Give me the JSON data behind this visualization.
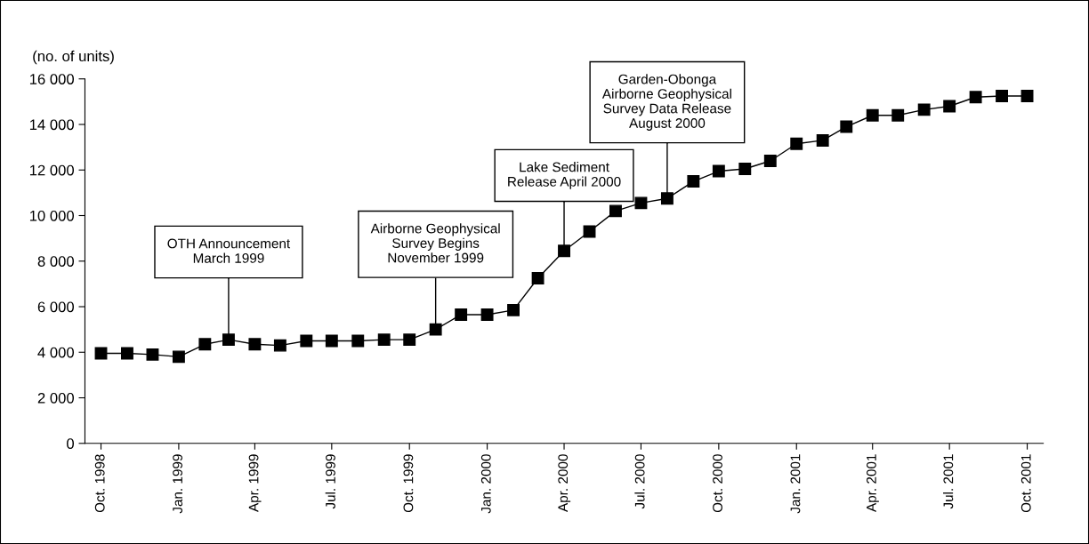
{
  "chart_data": {
    "type": "line",
    "ylabel": "(no. of units)",
    "x": [
      "1998-10",
      "1998-11",
      "1998-12",
      "1999-01",
      "1999-02",
      "1999-03",
      "1999-04",
      "1999-05",
      "1999-06",
      "1999-07",
      "1999-08",
      "1999-09",
      "1999-10",
      "1999-11",
      "1999-12",
      "2000-01",
      "2000-02",
      "2000-03",
      "2000-04",
      "2000-05",
      "2000-06",
      "2000-07",
      "2000-08",
      "2000-09",
      "2000-10",
      "2000-11",
      "2000-12",
      "2001-01",
      "2001-02",
      "2001-03",
      "2001-04",
      "2001-05",
      "2001-06",
      "2001-07",
      "2001-08",
      "2001-09",
      "2001-10"
    ],
    "series": [
      {
        "color": "#000000",
        "values": [
          3950,
          3950,
          3900,
          3800,
          4350,
          4550,
          4350,
          4300,
          4500,
          4500,
          4500,
          4550,
          4550,
          5000,
          5650,
          5650,
          5850,
          7250,
          8450,
          9300,
          10200,
          10550,
          10750,
          11500,
          11950,
          12050,
          12400,
          13150,
          13300,
          13900,
          14400,
          14400,
          14650,
          14800,
          15200,
          15250,
          15250
        ]
      }
    ],
    "marker": "square",
    "line_style": "solid",
    "grid": false,
    "legend": false,
    "xlim": [
      "1998-09-12",
      "2001-10-20"
    ],
    "xticks": [
      {
        "value": "1998-10",
        "label": "Oct. 1998"
      },
      {
        "value": "1999-01",
        "label": "Jan. 1999"
      },
      {
        "value": "1999-04",
        "label": "Apr. 1999"
      },
      {
        "value": "1999-07",
        "label": "Jul. 1999"
      },
      {
        "value": "1999-10",
        "label": "Oct. 1999"
      },
      {
        "value": "2000-01",
        "label": "Jan. 2000"
      },
      {
        "value": "2000-04",
        "label": "Apr. 2000"
      },
      {
        "value": "2000-07",
        "label": "Jul. 2000"
      },
      {
        "value": "2000-10",
        "label": "Oct. 2000"
      },
      {
        "value": "2001-01",
        "label": "Jan. 2001"
      },
      {
        "value": "2001-04",
        "label": "Apr. 2001"
      },
      {
        "value": "2001-07",
        "label": "Jul. 2001"
      },
      {
        "value": "2001-10",
        "label": "Oct. 2001"
      }
    ],
    "ylim": [
      0,
      16000
    ],
    "yticks": [
      0,
      {
        "value": 2000,
        "label": "2 000"
      },
      {
        "value": 4000,
        "label": "4 000"
      },
      {
        "value": 6000,
        "label": "6 000"
      },
      {
        "value": 8000,
        "label": "8 000"
      },
      {
        "value": 10000,
        "label": "10 000"
      },
      {
        "value": 12000,
        "label": "12 000"
      },
      {
        "value": 14000,
        "label": "14 000"
      },
      {
        "value": 16000,
        "label": "16 000"
      }
    ],
    "annotations": [
      {
        "text": "OTH Announcement\nMarch 1999",
        "x": "1999-03",
        "y": 4550
      },
      {
        "text": "Airborne Geophysical\nSurvey Begins\nNovember 1999",
        "x": "1999-11",
        "y": 5000
      },
      {
        "text": "Lake Sediment\nRelease April 2000",
        "x": "2000-04",
        "y": 8450
      },
      {
        "text": "Garden-Obonga\nAirborne Geophysical\nSurvey Data Release\nAugust 2000",
        "x": "2000-08",
        "y": 10750
      }
    ]
  }
}
